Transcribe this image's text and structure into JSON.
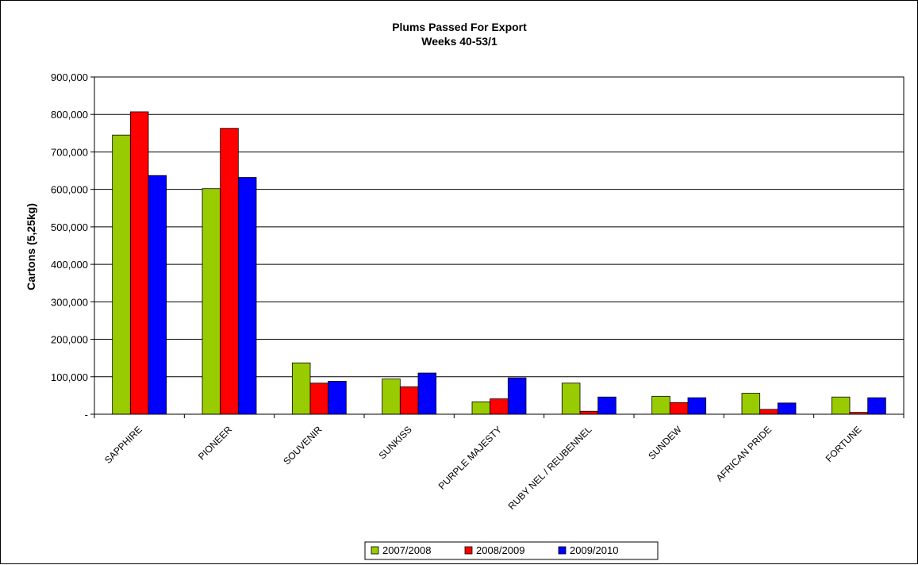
{
  "chart_data": {
    "type": "bar",
    "title": "Plums Passed For Export",
    "subtitle": "Weeks 40-53/1",
    "xlabel": "",
    "ylabel": "Cartons (5,25kg)",
    "ylim": [
      0,
      900000
    ],
    "yticks": [
      0,
      100000,
      200000,
      300000,
      400000,
      500000,
      600000,
      700000,
      800000,
      900000
    ],
    "ytick_labels": [
      "-",
      "100,000",
      "200,000",
      "300,000",
      "400,000",
      "500,000",
      "600,000",
      "700,000",
      "800,000",
      "900,000"
    ],
    "grid": true,
    "legend_position": "bottom",
    "categories": [
      "SAPPHIRE",
      "PIONEER",
      "SOUVENIR",
      "SUNKISS",
      "PURPLE MAJESTY",
      "RUBY NEL / REUBENNEL",
      "SUNDEW",
      "AFRICAN PRIDE",
      "FORTUNE"
    ],
    "series": [
      {
        "name": "2007/2008",
        "color": "#99cc00",
        "values": [
          745000,
          602000,
          137000,
          94000,
          33000,
          83000,
          48000,
          56000,
          46000
        ]
      },
      {
        "name": "2008/2009",
        "color": "#ff0000",
        "values": [
          807000,
          763000,
          83000,
          73000,
          41000,
          8000,
          31000,
          13000,
          5000
        ]
      },
      {
        "name": "2009/2010",
        "color": "#0000ff",
        "values": [
          637000,
          632000,
          88000,
          110000,
          97000,
          46000,
          44000,
          30000,
          44000
        ]
      }
    ]
  }
}
